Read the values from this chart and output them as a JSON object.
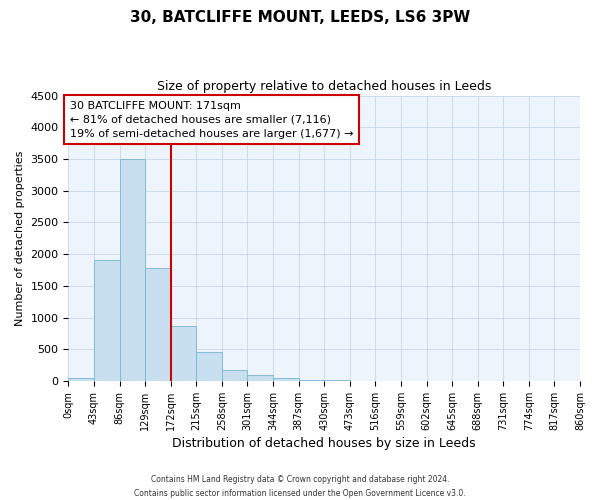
{
  "title": "30, BATCLIFFE MOUNT, LEEDS, LS6 3PW",
  "subtitle": "Size of property relative to detached houses in Leeds",
  "xlabel": "Distribution of detached houses by size in Leeds",
  "ylabel": "Number of detached properties",
  "bar_edges": [
    0,
    43,
    86,
    129,
    172,
    215,
    258,
    301,
    344,
    387,
    430,
    473,
    516,
    559,
    602,
    645,
    688,
    731,
    774,
    817,
    860
  ],
  "bar_heights": [
    50,
    1900,
    3500,
    1780,
    860,
    460,
    170,
    90,
    45,
    20,
    10,
    5,
    0,
    0,
    0,
    0,
    0,
    0,
    0,
    0
  ],
  "bar_color": "#c8dff0",
  "bar_edgecolor": "#7ab4d4",
  "property_line_x": 172,
  "property_line_color": "#cc0000",
  "annotation_title": "30 BATCLIFFE MOUNT: 171sqm",
  "annotation_line1": "← 81% of detached houses are smaller (7,116)",
  "annotation_line2": "19% of semi-detached houses are larger (1,677) →",
  "annotation_box_facecolor": "white",
  "annotation_box_edgecolor": "#cc0000",
  "ylim": [
    0,
    4500
  ],
  "yticks": [
    0,
    500,
    1000,
    1500,
    2000,
    2500,
    3000,
    3500,
    4000,
    4500
  ],
  "tick_labels": [
    "0sqm",
    "43sqm",
    "86sqm",
    "129sqm",
    "172sqm",
    "215sqm",
    "258sqm",
    "301sqm",
    "344sqm",
    "387sqm",
    "430sqm",
    "473sqm",
    "516sqm",
    "559sqm",
    "602sqm",
    "645sqm",
    "688sqm",
    "731sqm",
    "774sqm",
    "817sqm",
    "860sqm"
  ],
  "footnote1": "Contains HM Land Registry data © Crown copyright and database right 2024.",
  "footnote2": "Contains public sector information licensed under the Open Government Licence v3.0.",
  "background_color": "#eef4fb",
  "grid_color": "#c5d8eb",
  "figure_bg": "#ffffff"
}
